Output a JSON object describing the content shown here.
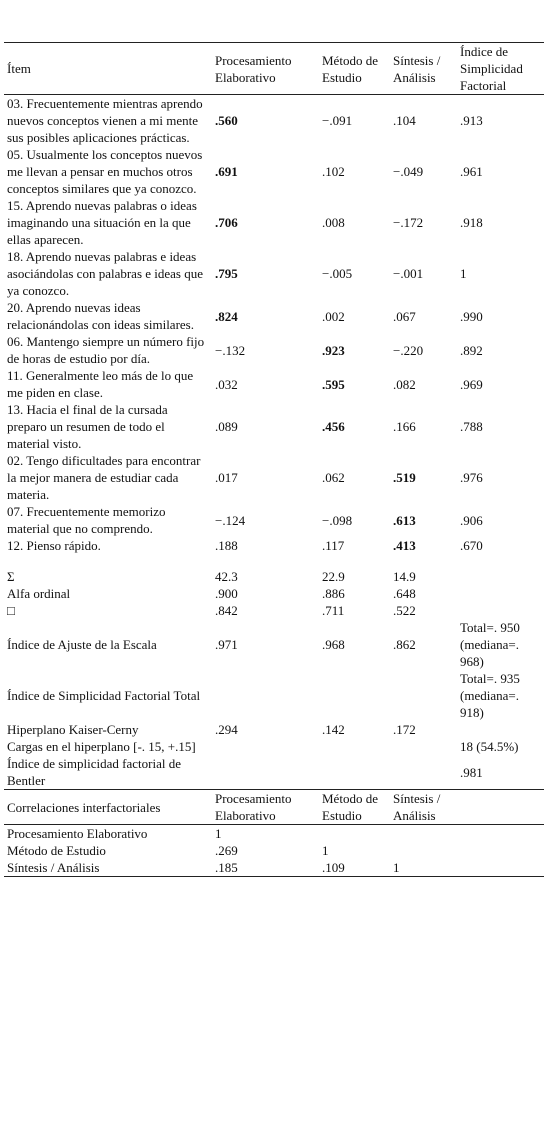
{
  "table": {
    "header": [
      "Ítem",
      "Procesamiento Elaborativo",
      "Método de Estudio",
      "Síntesis / Análisis",
      "Índice de Simplicidad Factorial"
    ],
    "rows": [
      [
        "03. Frecuentemente mientras aprendo nuevos conceptos vienen a mi mente sus posibles aplicaciones prácticas.",
        ".560",
        "−.091",
        ".104",
        ".913"
      ],
      [
        "05. Usualmente los conceptos nuevos me llevan a pensar en muchos otros conceptos similares que ya conozco.",
        ".691",
        ".102",
        "−.049",
        ".961"
      ],
      [
        "15. Aprendo nuevas palabras o ideas imaginando una situación en la que ellas aparecen.",
        ".706",
        ".008",
        "−.172",
        ".918"
      ],
      [
        "18. Aprendo nuevas palabras e ideas asociándolas con palabras e ideas que ya conozco.",
        ".795",
        "−.005",
        "−.001",
        "1"
      ],
      [
        "20. Aprendo nuevas ideas relacionándolas con ideas similares.",
        ".824",
        ".002",
        ".067",
        ".990"
      ],
      [
        "06. Mantengo siempre un número fijo de horas de estudio por día.",
        "−.132",
        ".923",
        "−.220",
        ".892"
      ],
      [
        "11. Generalmente leo más de lo que me piden en clase.",
        ".032",
        ".595",
        ".082",
        ".969"
      ],
      [
        "13. Hacia el final de la cursada preparo un resumen de todo el material visto.",
        ".089",
        ".456",
        ".166",
        ".788"
      ],
      [
        "02. Tengo dificultades para encontrar la mejor manera de estudiar cada materia.",
        ".017",
        ".062",
        ".519",
        ".976"
      ],
      [
        "07. Frecuentemente memorizo material que no comprendo.",
        "−.124",
        "−.098",
        ".613",
        ".906"
      ],
      [
        "12. Pienso rápido.",
        ".188",
        ".117",
        ".413",
        ".670"
      ]
    ],
    "summary_rows": [
      [
        "Σ",
        "42.3",
        "22.9",
        "14.9",
        null
      ],
      [
        "Alfa ordinal",
        ".900",
        ".886",
        ".648",
        null
      ],
      [
        "□",
        ".842",
        ".711",
        ".522",
        null
      ],
      [
        "Índice de Ajuste de la Escala",
        ".971",
        ".968",
        ".862",
        "Total=. 950 (mediana=. 968)"
      ],
      [
        "Índice de Simplicidad Factorial Total",
        null,
        null,
        null,
        "Total=. 935 (mediana=. 918)"
      ],
      [
        "Hiperplano Kaiser-Cerny",
        ".294",
        ".142",
        ".172",
        null
      ],
      [
        "Cargas en el hiperplano [-. 15, +.15]",
        null,
        null,
        null,
        "18 (54.5%)"
      ],
      [
        "Índice de simplicidad factorial de Bentler",
        null,
        null,
        null,
        ".981"
      ]
    ],
    "correlations": {
      "header": [
        "Correlaciones interfactoriales",
        "Procesamiento Elaborativo",
        "Método de Estudio",
        "Síntesis / Análisis"
      ],
      "rows": [
        [
          "Procesamiento Elaborativo",
          "1",
          null,
          null
        ],
        [
          "Método de Estudio",
          ".269",
          "1",
          null
        ],
        [
          "Síntesis / Análisis",
          ".185",
          ".109",
          "1"
        ]
      ]
    }
  }
}
